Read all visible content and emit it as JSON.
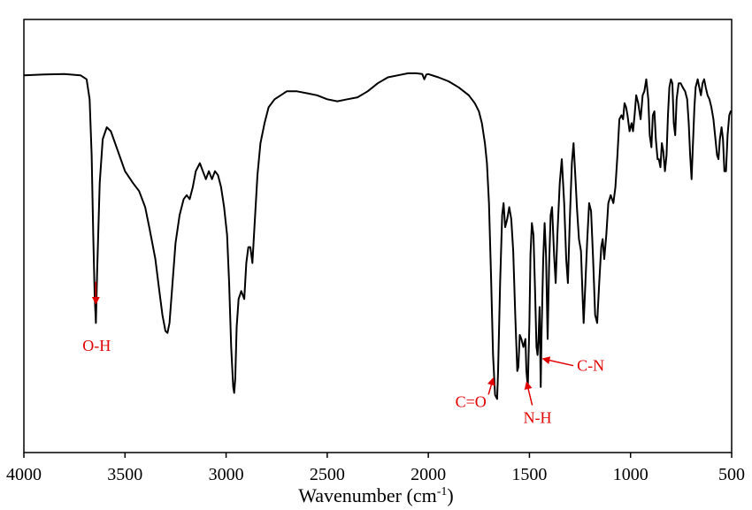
{
  "chart_data": {
    "type": "line",
    "title": "",
    "xlabel": "Wavenumber (cm",
    "xlabel_sup": "-1",
    "xlabel_close": ")",
    "ylabel": "",
    "x_reversed": true,
    "xlim": [
      4000,
      500
    ],
    "ylim": [
      0,
      100
    ],
    "y_ticks_shown": false,
    "grid": false,
    "line_color": "#000000",
    "annotation_color": "#e00000",
    "x_ticks": [
      {
        "value": 4000,
        "label": "4000"
      },
      {
        "value": 3500,
        "label": "3500"
      },
      {
        "value": 3000,
        "label": "3000"
      },
      {
        "value": 2500,
        "label": "2500"
      },
      {
        "value": 2000,
        "label": "2000"
      },
      {
        "value": 1500,
        "label": "1500"
      },
      {
        "value": 1000,
        "label": "1000"
      },
      {
        "value": 500,
        "label": "500"
      }
    ],
    "series": [
      {
        "points": [
          [
            4000,
            90
          ],
          [
            3900,
            90.2
          ],
          [
            3800,
            90.3
          ],
          [
            3720,
            90
          ],
          [
            3690,
            89
          ],
          [
            3675,
            84
          ],
          [
            3665,
            70
          ],
          [
            3657,
            50
          ],
          [
            3650,
            35
          ],
          [
            3644,
            28
          ],
          [
            3638,
            40
          ],
          [
            3625,
            63
          ],
          [
            3610,
            74
          ],
          [
            3590,
            77
          ],
          [
            3570,
            76
          ],
          [
            3500,
            66
          ],
          [
            3460,
            63
          ],
          [
            3430,
            61
          ],
          [
            3400,
            57
          ],
          [
            3380,
            52
          ],
          [
            3350,
            44
          ],
          [
            3330,
            36
          ],
          [
            3315,
            30
          ],
          [
            3300,
            26
          ],
          [
            3290,
            25.5
          ],
          [
            3280,
            28
          ],
          [
            3265,
            38
          ],
          [
            3250,
            48
          ],
          [
            3230,
            55
          ],
          [
            3210,
            59
          ],
          [
            3195,
            60
          ],
          [
            3180,
            59
          ],
          [
            3165,
            62
          ],
          [
            3150,
            66
          ],
          [
            3130,
            68
          ],
          [
            3115,
            66
          ],
          [
            3100,
            64
          ],
          [
            3085,
            66
          ],
          [
            3070,
            64
          ],
          [
            3055,
            66
          ],
          [
            3040,
            65
          ],
          [
            3025,
            62
          ],
          [
            3010,
            57
          ],
          [
            2995,
            50
          ],
          [
            2985,
            38
          ],
          [
            2975,
            22
          ],
          [
            2965,
            12
          ],
          [
            2960,
            10.5
          ],
          [
            2955,
            14
          ],
          [
            2948,
            27
          ],
          [
            2938,
            34
          ],
          [
            2925,
            36
          ],
          [
            2910,
            34
          ],
          [
            2900,
            43
          ],
          [
            2890,
            47
          ],
          [
            2880,
            47
          ],
          [
            2870,
            43
          ],
          [
            2860,
            52
          ],
          [
            2845,
            65
          ],
          [
            2830,
            73
          ],
          [
            2810,
            78
          ],
          [
            2790,
            82
          ],
          [
            2760,
            84
          ],
          [
            2730,
            85
          ],
          [
            2700,
            86
          ],
          [
            2650,
            86
          ],
          [
            2600,
            85.5
          ],
          [
            2550,
            85
          ],
          [
            2500,
            84
          ],
          [
            2450,
            83.5
          ],
          [
            2400,
            84
          ],
          [
            2350,
            84.5
          ],
          [
            2300,
            86
          ],
          [
            2250,
            88
          ],
          [
            2200,
            89.5
          ],
          [
            2150,
            90
          ],
          [
            2100,
            90.5
          ],
          [
            2060,
            90.5
          ],
          [
            2030,
            90.3
          ],
          [
            2020,
            89
          ],
          [
            2010,
            90.2
          ],
          [
            2000,
            90.3
          ],
          [
            1950,
            89.5
          ],
          [
            1900,
            88.5
          ],
          [
            1850,
            87
          ],
          [
            1800,
            85
          ],
          [
            1770,
            83
          ],
          [
            1750,
            81
          ],
          [
            1735,
            78
          ],
          [
            1720,
            73
          ],
          [
            1710,
            68
          ],
          [
            1700,
            58
          ],
          [
            1690,
            40
          ],
          [
            1680,
            20
          ],
          [
            1670,
            10
          ],
          [
            1660,
            9
          ],
          [
            1655,
            16
          ],
          [
            1645,
            38
          ],
          [
            1635,
            55
          ],
          [
            1628,
            58
          ],
          [
            1620,
            52
          ],
          [
            1610,
            54
          ],
          [
            1600,
            57
          ],
          [
            1590,
            54
          ],
          [
            1580,
            46
          ],
          [
            1570,
            30
          ],
          [
            1560,
            16
          ],
          [
            1555,
            17
          ],
          [
            1548,
            25
          ],
          [
            1540,
            24
          ],
          [
            1530,
            22
          ],
          [
            1520,
            24
          ],
          [
            1515,
            16
          ],
          [
            1508,
            12
          ],
          [
            1500,
            28
          ],
          [
            1495,
            45
          ],
          [
            1488,
            53
          ],
          [
            1480,
            50
          ],
          [
            1472,
            36
          ],
          [
            1465,
            22
          ],
          [
            1460,
            20
          ],
          [
            1455,
            24
          ],
          [
            1450,
            32
          ],
          [
            1444,
            12
          ],
          [
            1440,
            25
          ],
          [
            1432,
            44
          ],
          [
            1425,
            53
          ],
          [
            1418,
            45
          ],
          [
            1410,
            24
          ],
          [
            1403,
            42
          ],
          [
            1395,
            55
          ],
          [
            1388,
            57
          ],
          [
            1378,
            45
          ],
          [
            1370,
            38
          ],
          [
            1362,
            50
          ],
          [
            1350,
            63
          ],
          [
            1340,
            69
          ],
          [
            1328,
            58
          ],
          [
            1318,
            44
          ],
          [
            1310,
            38
          ],
          [
            1300,
            54
          ],
          [
            1290,
            68
          ],
          [
            1282,
            73
          ],
          [
            1272,
            64
          ],
          [
            1265,
            57
          ],
          [
            1255,
            49
          ],
          [
            1245,
            46
          ],
          [
            1238,
            36
          ],
          [
            1232,
            28
          ],
          [
            1225,
            36
          ],
          [
            1215,
            48
          ],
          [
            1205,
            58
          ],
          [
            1195,
            56
          ],
          [
            1185,
            44
          ],
          [
            1175,
            30
          ],
          [
            1165,
            28
          ],
          [
            1155,
            38
          ],
          [
            1145,
            47
          ],
          [
            1138,
            49
          ],
          [
            1130,
            44
          ],
          [
            1120,
            50
          ],
          [
            1110,
            58
          ],
          [
            1098,
            60
          ],
          [
            1085,
            58
          ],
          [
            1075,
            62
          ],
          [
            1065,
            70
          ],
          [
            1055,
            79
          ],
          [
            1045,
            80
          ],
          [
            1037,
            79
          ],
          [
            1030,
            83
          ],
          [
            1022,
            82
          ],
          [
            1015,
            80
          ],
          [
            1005,
            76
          ],
          [
            995,
            78
          ],
          [
            988,
            76
          ],
          [
            980,
            80
          ],
          [
            972,
            85
          ],
          [
            962,
            83
          ],
          [
            950,
            79
          ],
          [
            940,
            85
          ],
          [
            932,
            86
          ],
          [
            922,
            89
          ],
          [
            912,
            84
          ],
          [
            905,
            75
          ],
          [
            897,
            72
          ],
          [
            890,
            80
          ],
          [
            882,
            81
          ],
          [
            875,
            74
          ],
          [
            866,
            69
          ],
          [
            860,
            69
          ],
          [
            852,
            67
          ],
          [
            845,
            73
          ],
          [
            838,
            71
          ],
          [
            830,
            66
          ],
          [
            822,
            70
          ],
          [
            815,
            80
          ],
          [
            808,
            87
          ],
          [
            800,
            89
          ],
          [
            793,
            88
          ],
          [
            786,
            78
          ],
          [
            779,
            75
          ],
          [
            772,
            84
          ],
          [
            762,
            88
          ],
          [
            752,
            88
          ],
          [
            742,
            87
          ],
          [
            730,
            86
          ],
          [
            720,
            84
          ],
          [
            712,
            78
          ],
          [
            705,
            70
          ],
          [
            698,
            64
          ],
          [
            692,
            72
          ],
          [
            684,
            82
          ],
          [
            678,
            87
          ],
          [
            668,
            89
          ],
          [
            660,
            87
          ],
          [
            652,
            85
          ],
          [
            644,
            88
          ],
          [
            636,
            89
          ],
          [
            628,
            87
          ],
          [
            619,
            85
          ],
          [
            610,
            84
          ],
          [
            600,
            82
          ],
          [
            590,
            79
          ],
          [
            580,
            74
          ],
          [
            572,
            70
          ],
          [
            565,
            69
          ],
          [
            558,
            74
          ],
          [
            550,
            77
          ],
          [
            543,
            74
          ],
          [
            536,
            66
          ],
          [
            528,
            66
          ],
          [
            520,
            75
          ],
          [
            512,
            80
          ],
          [
            505,
            81
          ],
          [
            500,
            81
          ]
        ]
      }
    ],
    "annotations": [
      {
        "text": "O-H",
        "x": 3644,
        "y": 33,
        "label_x": 3640,
        "label_y": 21,
        "label_anchor": "middle",
        "arrow": "down"
      },
      {
        "text": "C=O",
        "x": 1680,
        "y": 14,
        "label_x": 1790,
        "label_y": 7,
        "label_anchor": "middle",
        "arrow": "up-right"
      },
      {
        "text": "N-H",
        "x": 1513,
        "y": 13,
        "label_x": 1460,
        "label_y": 3,
        "label_anchor": "middle",
        "arrow": "down-right"
      },
      {
        "text": "C-N",
        "x": 1430,
        "y": 19,
        "label_x": 1265,
        "label_y": 16,
        "label_anchor": "start",
        "arrow": "right"
      }
    ]
  }
}
